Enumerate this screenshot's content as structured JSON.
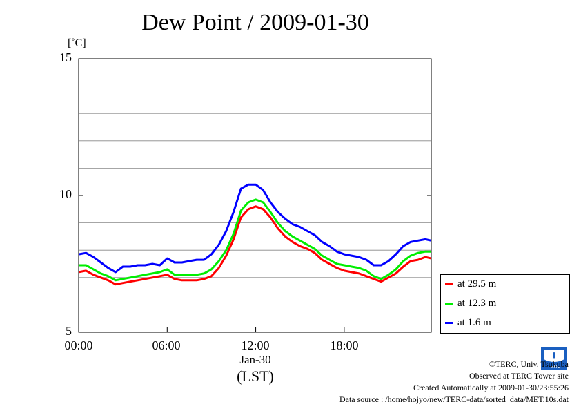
{
  "chart_data": {
    "type": "line",
    "title": "Dew Point / 2009-01-30",
    "ylabel": "[˚C]",
    "xlabel": "(LST)",
    "x_date_label": "Jan-30",
    "ylim": [
      5,
      15
    ],
    "xlim": [
      0,
      23.9
    ],
    "y_ticks": [
      "15",
      "10",
      "5"
    ],
    "y_tick_values": [
      15,
      10,
      5
    ],
    "y_grid": [
      6,
      7,
      8,
      9,
      11,
      12,
      13,
      14
    ],
    "x_ticks": [
      "00:00",
      "06:00",
      "12:00",
      "18:00"
    ],
    "x_tick_values": [
      0,
      6,
      12,
      18
    ],
    "x": [
      0,
      0.5,
      1,
      1.5,
      2,
      2.5,
      3,
      3.5,
      4,
      4.5,
      5,
      5.5,
      6,
      6.5,
      7,
      7.5,
      8,
      8.5,
      9,
      9.5,
      10,
      10.5,
      11,
      11.5,
      12,
      12.5,
      13,
      13.5,
      14,
      14.5,
      15,
      15.5,
      16,
      16.5,
      17,
      17.5,
      18,
      18.5,
      19,
      19.5,
      20,
      20.5,
      21,
      21.5,
      22,
      22.5,
      23,
      23.5,
      23.9
    ],
    "series": [
      {
        "name": "at 29.5 m",
        "color": "#ff0000",
        "values": [
          7.2,
          7.25,
          7.1,
          7.0,
          6.9,
          6.75,
          6.8,
          6.85,
          6.9,
          6.95,
          7.0,
          7.05,
          7.1,
          6.95,
          6.9,
          6.9,
          6.9,
          6.95,
          7.05,
          7.35,
          7.8,
          8.4,
          9.2,
          9.5,
          9.6,
          9.5,
          9.2,
          8.8,
          8.5,
          8.3,
          8.15,
          8.05,
          7.9,
          7.65,
          7.5,
          7.35,
          7.25,
          7.2,
          7.15,
          7.05,
          6.95,
          6.85,
          7.0,
          7.15,
          7.4,
          7.6,
          7.65,
          7.75,
          7.7
        ]
      },
      {
        "name": "at 12.3 m",
        "color": "#00ee00",
        "values": [
          7.45,
          7.45,
          7.3,
          7.15,
          7.05,
          6.9,
          6.95,
          7.0,
          7.05,
          7.1,
          7.15,
          7.2,
          7.3,
          7.1,
          7.1,
          7.1,
          7.1,
          7.15,
          7.3,
          7.6,
          8.0,
          8.6,
          9.45,
          9.75,
          9.85,
          9.75,
          9.4,
          9.0,
          8.7,
          8.5,
          8.35,
          8.2,
          8.05,
          7.8,
          7.65,
          7.5,
          7.45,
          7.4,
          7.35,
          7.25,
          7.05,
          6.95,
          7.1,
          7.3,
          7.6,
          7.8,
          7.9,
          7.95,
          7.95
        ]
      },
      {
        "name": "at 1.6 m",
        "color": "#0000ff",
        "values": [
          7.85,
          7.9,
          7.75,
          7.55,
          7.35,
          7.2,
          7.4,
          7.4,
          7.45,
          7.45,
          7.5,
          7.45,
          7.7,
          7.55,
          7.55,
          7.6,
          7.65,
          7.65,
          7.85,
          8.2,
          8.7,
          9.4,
          10.25,
          10.4,
          10.4,
          10.2,
          9.75,
          9.4,
          9.15,
          8.95,
          8.85,
          8.7,
          8.55,
          8.3,
          8.15,
          7.95,
          7.85,
          7.8,
          7.75,
          7.65,
          7.45,
          7.45,
          7.6,
          7.85,
          8.15,
          8.3,
          8.35,
          8.4,
          8.35
        ]
      }
    ]
  },
  "legend": {
    "items": [
      {
        "label": "at 29.5 m",
        "color": "#ff0000"
      },
      {
        "label": "at 12.3 m",
        "color": "#00ee00"
      },
      {
        "label": "at 1.6 m",
        "color": "#0000ff"
      }
    ]
  },
  "credits": {
    "copyright": "©TERC, Univ. Tsukuba",
    "observed": "Observed at TERC Tower site",
    "created": "Created Automatically at 2009-01-30/23:55:26",
    "source": "Data source : /home/hojyo/new/TERC-data/sorted_data/MET.10s.dat"
  },
  "logo": {
    "text": "TERC",
    "color": "#1a5fc0"
  }
}
